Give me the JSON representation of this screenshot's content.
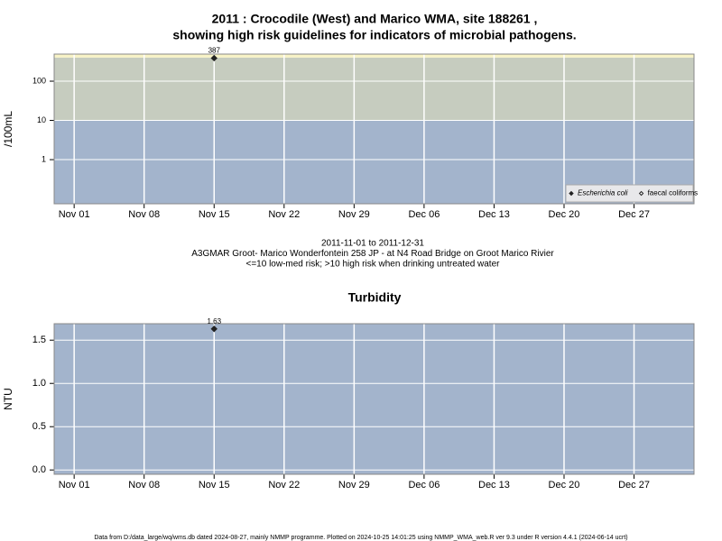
{
  "chart_data": [
    {
      "type": "scatter",
      "title_lines": [
        "2011 : Crocodile (West) and Marico WMA, site 188261 ,",
        "showing high risk guidelines for indicators of microbial pathogens."
      ],
      "ylabel": "/100mL",
      "log_y": true,
      "ylim": [
        0.075,
        490
      ],
      "yticks": [
        1,
        10,
        100
      ],
      "xlim": [
        "2011-10-30",
        "2012-01-02"
      ],
      "xticks": [
        {
          "value": "2011-11-01",
          "label": "Nov 01"
        },
        {
          "value": "2011-11-08",
          "label": "Nov 08"
        },
        {
          "value": "2011-11-15",
          "label": "Nov 15"
        },
        {
          "value": "2011-11-22",
          "label": "Nov 22"
        },
        {
          "value": "2011-11-29",
          "label": "Nov 29"
        },
        {
          "value": "2011-12-06",
          "label": "Dec 06"
        },
        {
          "value": "2011-12-13",
          "label": "Dec 13"
        },
        {
          "value": "2011-12-20",
          "label": "Dec 20"
        },
        {
          "value": "2011-12-27",
          "label": "Dec 27"
        }
      ],
      "band_edges": [
        10,
        400
      ],
      "band_colors": [
        "#a3b4cc",
        "#c6ccbf",
        "#f8f3c6"
      ],
      "grid": true,
      "legend": "lower right",
      "series": [
        {
          "name": "Escherichia coli",
          "color": "#222222",
          "marker": "filled",
          "x": [
            "2011-11-15"
          ],
          "values": [
            387
          ]
        },
        {
          "name": "faecal coliforms",
          "color": "#222222",
          "marker": "open",
          "x": [],
          "values": []
        }
      ],
      "notes": [
        "2011-11-01 to 2011-12-31",
        "A3GMAR Groot- Marico Wonderfontein 258 JP - at N4 Road Bridge on Groot Marico Rivier",
        "<=10 low-med risk; >10 high risk when drinking untreated water"
      ]
    },
    {
      "type": "scatter",
      "title_lines": [
        "Turbidity"
      ],
      "ylabel": "NTU",
      "log_y": false,
      "ylim": [
        -0.05,
        1.69
      ],
      "yticks": [
        {
          "value": 0,
          "label": "0.0"
        },
        {
          "value": 0.5,
          "label": "0.5"
        },
        {
          "value": 1,
          "label": "1.0"
        },
        {
          "value": 1.5,
          "label": "1.5"
        }
      ],
      "xlim": [
        "2011-10-30",
        "2012-01-02"
      ],
      "xticks": [
        {
          "value": "2011-11-01",
          "label": "Nov 01"
        },
        {
          "value": "2011-11-08",
          "label": "Nov 08"
        },
        {
          "value": "2011-11-15",
          "label": "Nov 15"
        },
        {
          "value": "2011-11-22",
          "label": "Nov 22"
        },
        {
          "value": "2011-11-29",
          "label": "Nov 29"
        },
        {
          "value": "2011-12-06",
          "label": "Dec 06"
        },
        {
          "value": "2011-12-13",
          "label": "Dec 13"
        },
        {
          "value": "2011-12-20",
          "label": "Dec 20"
        },
        {
          "value": "2011-12-27",
          "label": "Dec 27"
        }
      ],
      "band_edges": [],
      "band_colors": [
        "#a3b4cc"
      ],
      "grid": true,
      "series": [
        {
          "color": "#222222",
          "marker": "filled",
          "x": [
            "2011-11-15"
          ],
          "values": [
            1.63
          ]
        }
      ]
    }
  ],
  "footer": "Data from D:/data_large/wq/wms.db dated 2024-08-27, mainly NMMP programme. Plotted on 2024-10-25 14:01:25 using NMMP_WMA_web.R ver 9.3 under R version 4.4.1 (2024-06-14 ucrt)"
}
